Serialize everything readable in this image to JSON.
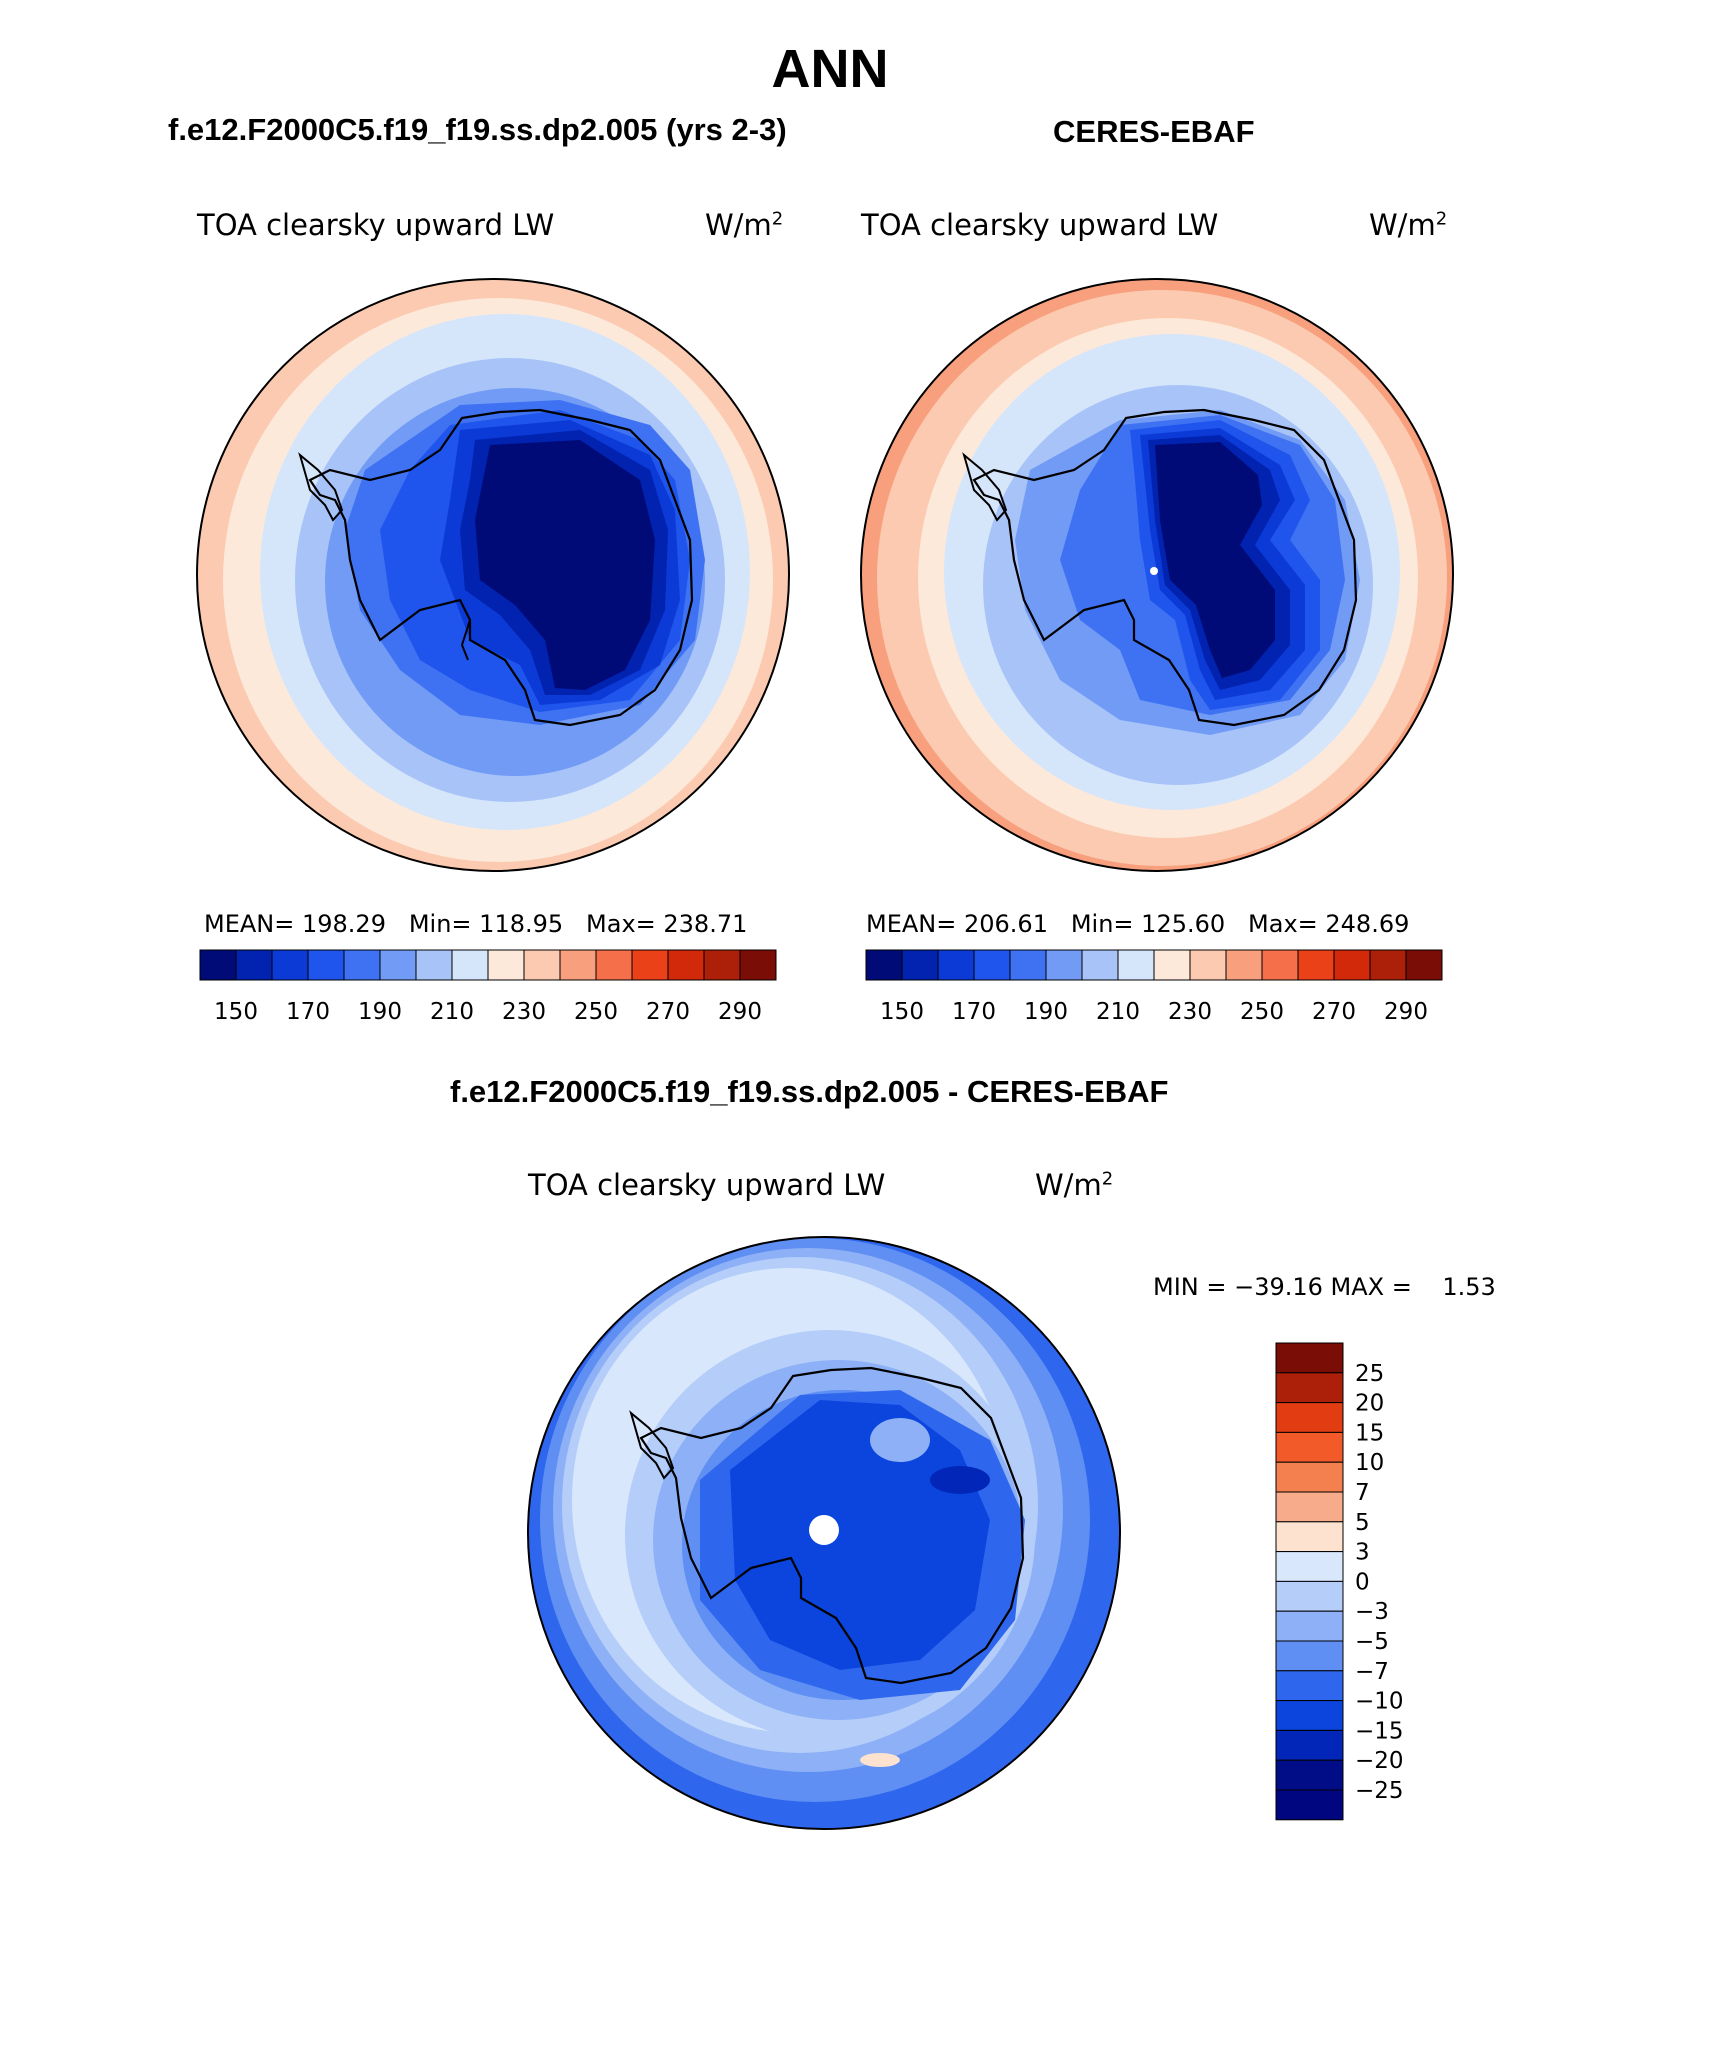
{
  "page": {
    "title": "ANN",
    "left_title": "f.e12.F2000C5.f19_f19.ss.dp2.005 (yrs 2-3)",
    "right_title": "CERES-EBAF",
    "diff_title": "f.e12.F2000C5.f19_f19.ss.dp2.005 - CERES-EBAF"
  },
  "panels": {
    "left": {
      "variable": "TOA clearsky upward LW",
      "units": "W/m",
      "units_sup": "2",
      "stats": "MEAN= 198.29   Min= 118.95   Max= 238.71"
    },
    "right": {
      "variable": "TOA clearsky upward LW",
      "units": "W/m",
      "units_sup": "2",
      "stats": "MEAN= 206.61   Min= 125.60   Max= 248.69"
    },
    "diff": {
      "variable": "TOA clearsky upward LW",
      "units": "W/m",
      "units_sup": "2",
      "stats": "MIN = −39.16 MAX =    1.53"
    }
  },
  "chart_data": [
    {
      "type": "heatmap",
      "title": "f.e12.F2000C5.f19_f19.ss.dp2.005 (yrs 2-3)",
      "variable": "TOA clearsky upward LW",
      "units": "W/m2",
      "projection": "south polar stereographic",
      "stats": {
        "mean": 198.29,
        "min": 118.95,
        "max": 238.71
      },
      "colorbar": {
        "tick_labels": [
          "150",
          "170",
          "190",
          "210",
          "230",
          "250",
          "270",
          "290"
        ],
        "levels": [
          140,
          150,
          160,
          170,
          180,
          190,
          200,
          210,
          220,
          230,
          240,
          250,
          260,
          270,
          280,
          290
        ],
        "colors": [
          "#000b78",
          "#0222b0",
          "#0c3ad6",
          "#1f55ec",
          "#3e72f2",
          "#729bf6",
          "#a7c3f8",
          "#d5e6fb",
          "#fde9da",
          "#fbcab0",
          "#f8a07e",
          "#f5704a",
          "#ea4118",
          "#d1290a",
          "#ac1f08",
          "#7a0d05"
        ]
      }
    },
    {
      "type": "heatmap",
      "title": "CERES-EBAF",
      "variable": "TOA clearsky upward LW",
      "units": "W/m2",
      "projection": "south polar stereographic",
      "stats": {
        "mean": 206.61,
        "min": 125.6,
        "max": 248.69
      },
      "colorbar": {
        "tick_labels": [
          "150",
          "170",
          "190",
          "210",
          "230",
          "250",
          "270",
          "290"
        ],
        "levels": [
          140,
          150,
          160,
          170,
          180,
          190,
          200,
          210,
          220,
          230,
          240,
          250,
          260,
          270,
          280,
          290
        ],
        "colors": [
          "#000b78",
          "#0222b0",
          "#0c3ad6",
          "#1f55ec",
          "#3e72f2",
          "#729bf6",
          "#a7c3f8",
          "#d5e6fb",
          "#fde9da",
          "#fbcab0",
          "#f8a07e",
          "#f5704a",
          "#ea4118",
          "#d1290a",
          "#ac1f08",
          "#7a0d05"
        ]
      }
    },
    {
      "type": "heatmap",
      "title": "f.e12.F2000C5.f19_f19.ss.dp2.005 - CERES-EBAF",
      "variable": "TOA clearsky upward LW",
      "units": "W/m2",
      "projection": "south polar stereographic",
      "stats": {
        "min": -39.16,
        "max": 1.53
      },
      "colorbar": {
        "tick_labels": [
          "25",
          "20",
          "15",
          "10",
          "7",
          "5",
          "3",
          "0",
          "−3",
          "−5",
          "−7",
          "−10",
          "−15",
          "−20",
          "−25"
        ],
        "colors_top_to_bottom": [
          "#7a0d05",
          "#ac1f08",
          "#e23c12",
          "#f35a2a",
          "#f5804f",
          "#f8ab8a",
          "#fde2cf",
          "#d8e7fc",
          "#b4cdf9",
          "#8db0f6",
          "#5f8ff3",
          "#2f66ee",
          "#0c45dd",
          "#0226b8",
          "#000d86",
          "#000680"
        ]
      }
    }
  ]
}
